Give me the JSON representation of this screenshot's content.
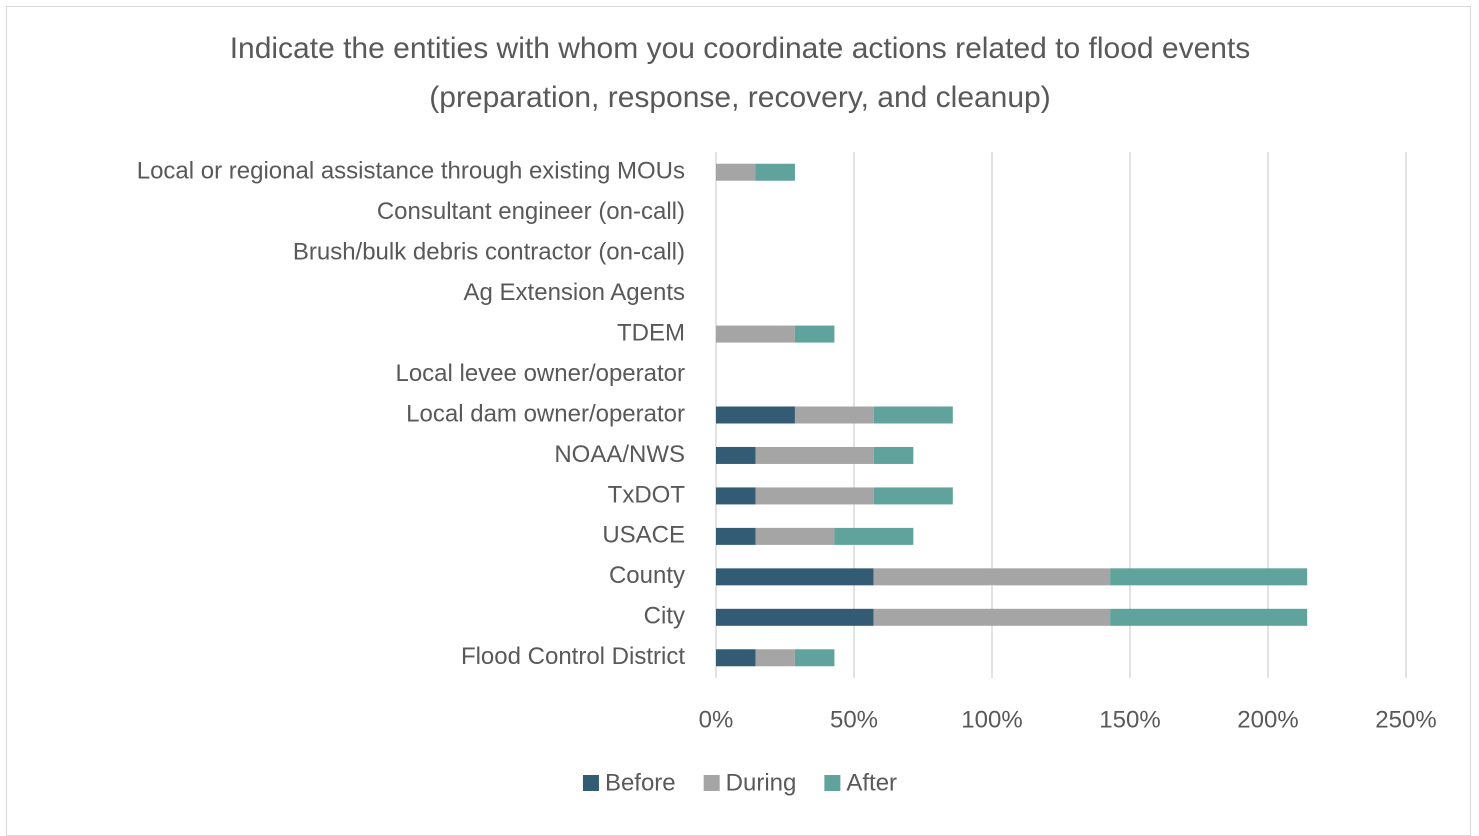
{
  "chart_data": {
    "type": "stacked_barh",
    "title": "Indicate the entities with whom you coordinate actions related to flood events (preparation, response, recovery, and cleanup)",
    "categories": [
      "Local or regional assistance through existing MOUs",
      "Consultant engineer (on-call)",
      "Brush/bulk debris contractor (on-call)",
      "Ag Extension Agents",
      "TDEM",
      "Local levee owner/operator",
      "Local dam owner/operator",
      "NOAA/NWS",
      "TxDOT",
      "USACE",
      "County",
      "City",
      "Flood Control District"
    ],
    "series": [
      {
        "name": "Before",
        "color": "#335b74",
        "values": [
          0,
          0,
          0,
          0,
          0,
          0,
          28.6,
          14.3,
          14.3,
          14.3,
          57.1,
          57.1,
          14.3
        ]
      },
      {
        "name": "During",
        "color": "#a5a5a5",
        "values": [
          14.3,
          0,
          0,
          0,
          28.6,
          0,
          28.6,
          42.9,
          42.9,
          28.6,
          85.7,
          85.7,
          14.3
        ]
      },
      {
        "name": "After",
        "color": "#5fa39c",
        "values": [
          14.3,
          0,
          0,
          0,
          14.3,
          0,
          28.6,
          14.3,
          28.6,
          28.6,
          71.4,
          71.4,
          14.3
        ]
      }
    ],
    "xlim": [
      0,
      250
    ],
    "xticks": [
      {
        "value": 0,
        "label": "0%"
      },
      {
        "value": 50,
        "label": "50%"
      },
      {
        "value": 100,
        "label": "100%"
      },
      {
        "value": 150,
        "label": "150%"
      },
      {
        "value": 200,
        "label": "200%"
      },
      {
        "value": 250,
        "label": "250%"
      }
    ],
    "grid": true,
    "legend": "bottom"
  }
}
